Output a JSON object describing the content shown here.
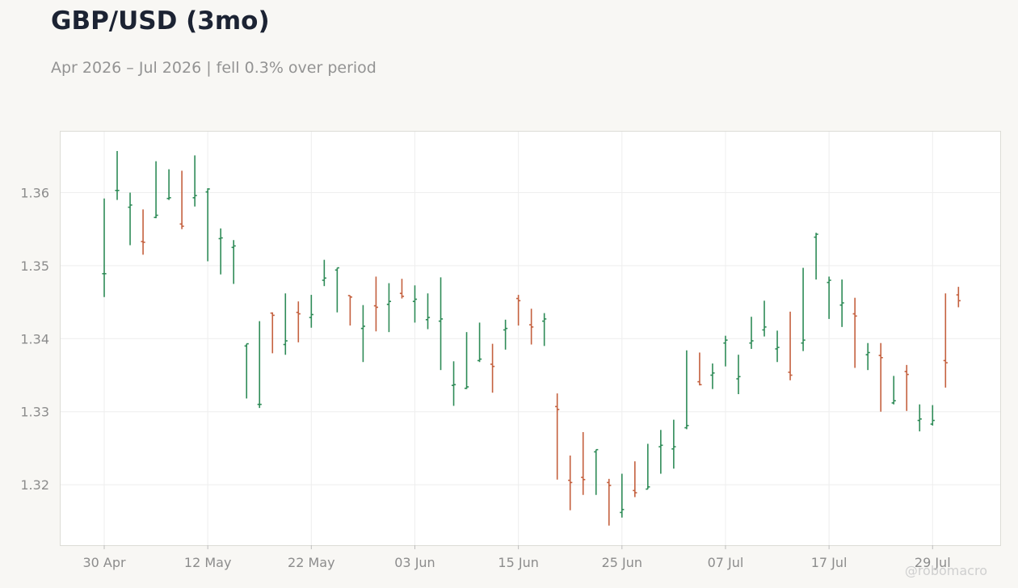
{
  "header": {
    "title": "GBP/USD (3mo)",
    "subtitle": "Apr 2026 – Jul 2026 | fell 0.3% over period"
  },
  "watermark": "@robomacro",
  "colors": {
    "up": "#2e8b57",
    "down": "#c4603e",
    "grid": "#eeeeee",
    "frame": "#dcdcd6",
    "background": "#f8f7f4",
    "plot_background": "#ffffff"
  },
  "chart_data": {
    "type": "ohlc",
    "title": "GBP/USD (3mo)",
    "subtitle": "Apr 2026 – Jul 2026 | fell 0.3% over period",
    "xlabel": "",
    "ylabel": "",
    "ylim": [
      1.3115,
      1.3685
    ],
    "grid": true,
    "x_ticks": [
      "30 Apr",
      "12 May",
      "22 May",
      "03 Jun",
      "15 Jun",
      "25 Jun",
      "07 Jul",
      "17 Jul",
      "29 Jul"
    ],
    "y_ticks": [
      "1.32",
      "1.33",
      "1.34",
      "1.35",
      "1.36"
    ],
    "y_tick_values": [
      1.32,
      1.33,
      1.34,
      1.35,
      1.36
    ],
    "bars": [
      {
        "date": "30 Apr",
        "open": 1.3489,
        "high": 1.3592,
        "low": 1.3457,
        "close": 1.3489
      },
      {
        "date": "01 May",
        "open": 1.3603,
        "high": 1.3657,
        "low": 1.359,
        "close": 1.3603
      },
      {
        "date": "04 May",
        "open": 1.358,
        "high": 1.36,
        "low": 1.3528,
        "close": 1.3583
      },
      {
        "date": "05 May",
        "open": 1.3533,
        "high": 1.3577,
        "low": 1.3515,
        "close": 1.3532
      },
      {
        "date": "06 May",
        "open": 1.3566,
        "high": 1.3643,
        "low": 1.3565,
        "close": 1.3569
      },
      {
        "date": "07 May",
        "open": 1.3592,
        "high": 1.3632,
        "low": 1.359,
        "close": 1.3593
      },
      {
        "date": "08 May",
        "open": 1.3557,
        "high": 1.363,
        "low": 1.355,
        "close": 1.3554
      },
      {
        "date": "11 May",
        "open": 1.3593,
        "high": 1.3651,
        "low": 1.3581,
        "close": 1.3596
      },
      {
        "date": "12 May",
        "open": 1.3601,
        "high": 1.3606,
        "low": 1.3506,
        "close": 1.3605
      },
      {
        "date": "13 May",
        "open": 1.3537,
        "high": 1.3551,
        "low": 1.3488,
        "close": 1.3538
      },
      {
        "date": "14 May",
        "open": 1.3525,
        "high": 1.3535,
        "low": 1.3475,
        "close": 1.3527
      },
      {
        "date": "15 May",
        "open": 1.339,
        "high": 1.3393,
        "low": 1.3318,
        "close": 1.3393
      },
      {
        "date": "18 May",
        "open": 1.331,
        "high": 1.3424,
        "low": 1.3305,
        "close": 1.331
      },
      {
        "date": "19 May",
        "open": 1.3435,
        "high": 1.3436,
        "low": 1.338,
        "close": 1.3432
      },
      {
        "date": "20 May",
        "open": 1.3392,
        "high": 1.3462,
        "low": 1.3378,
        "close": 1.3397
      },
      {
        "date": "21 May",
        "open": 1.3436,
        "high": 1.3451,
        "low": 1.3395,
        "close": 1.3434
      },
      {
        "date": "22 May",
        "open": 1.3429,
        "high": 1.346,
        "low": 1.3415,
        "close": 1.3433
      },
      {
        "date": "25 May",
        "open": 1.348,
        "high": 1.3508,
        "low": 1.3472,
        "close": 1.3483
      },
      {
        "date": "26 May",
        "open": 1.3494,
        "high": 1.3497,
        "low": 1.3436,
        "close": 1.3497
      },
      {
        "date": "27 May",
        "open": 1.3459,
        "high": 1.3459,
        "low": 1.3418,
        "close": 1.3457
      },
      {
        "date": "28 May",
        "open": 1.3414,
        "high": 1.3446,
        "low": 1.3368,
        "close": 1.3417
      },
      {
        "date": "29 May",
        "open": 1.3445,
        "high": 1.3485,
        "low": 1.341,
        "close": 1.3443
      },
      {
        "date": "01 Jun",
        "open": 1.3447,
        "high": 1.3476,
        "low": 1.3409,
        "close": 1.3451
      },
      {
        "date": "02 Jun",
        "open": 1.3462,
        "high": 1.3482,
        "low": 1.3455,
        "close": 1.3458
      },
      {
        "date": "03 Jun",
        "open": 1.3451,
        "high": 1.3473,
        "low": 1.3422,
        "close": 1.3454
      },
      {
        "date": "04 Jun",
        "open": 1.3426,
        "high": 1.3462,
        "low": 1.3413,
        "close": 1.3429
      },
      {
        "date": "05 Jun",
        "open": 1.3424,
        "high": 1.3484,
        "low": 1.3357,
        "close": 1.3427
      },
      {
        "date": "08 Jun",
        "open": 1.3336,
        "high": 1.3369,
        "low": 1.3308,
        "close": 1.3337
      },
      {
        "date": "09 Jun",
        "open": 1.3332,
        "high": 1.3409,
        "low": 1.3331,
        "close": 1.3334
      },
      {
        "date": "10 Jun",
        "open": 1.337,
        "high": 1.3422,
        "low": 1.3368,
        "close": 1.3372
      },
      {
        "date": "11 Jun",
        "open": 1.3365,
        "high": 1.3393,
        "low": 1.3326,
        "close": 1.3362
      },
      {
        "date": "12 Jun",
        "open": 1.3412,
        "high": 1.3426,
        "low": 1.3385,
        "close": 1.3414
      },
      {
        "date": "15 Jun",
        "open": 1.3455,
        "high": 1.346,
        "low": 1.3418,
        "close": 1.3452
      },
      {
        "date": "16 Jun",
        "open": 1.3419,
        "high": 1.3441,
        "low": 1.3392,
        "close": 1.3416
      },
      {
        "date": "17 Jun",
        "open": 1.3424,
        "high": 1.3435,
        "low": 1.339,
        "close": 1.3427
      },
      {
        "date": "18 Jun",
        "open": 1.3307,
        "high": 1.3325,
        "low": 1.3207,
        "close": 1.3303
      },
      {
        "date": "19 Jun",
        "open": 1.3206,
        "high": 1.324,
        "low": 1.3165,
        "close": 1.3203
      },
      {
        "date": "22 Jun",
        "open": 1.321,
        "high": 1.3272,
        "low": 1.3186,
        "close": 1.3207
      },
      {
        "date": "23 Jun",
        "open": 1.3245,
        "high": 1.3248,
        "low": 1.3186,
        "close": 1.3248
      },
      {
        "date": "24 Jun",
        "open": 1.3203,
        "high": 1.3208,
        "low": 1.3144,
        "close": 1.3199
      },
      {
        "date": "25 Jun",
        "open": 1.3162,
        "high": 1.3215,
        "low": 1.3155,
        "close": 1.3166
      },
      {
        "date": "26 Jun",
        "open": 1.3192,
        "high": 1.3232,
        "low": 1.3183,
        "close": 1.3189
      },
      {
        "date": "29 Jun",
        "open": 1.3194,
        "high": 1.3256,
        "low": 1.3194,
        "close": 1.3197
      },
      {
        "date": "30 Jun",
        "open": 1.3252,
        "high": 1.3275,
        "low": 1.3215,
        "close": 1.3254
      },
      {
        "date": "01 Jul",
        "open": 1.3249,
        "high": 1.3289,
        "low": 1.3222,
        "close": 1.3252
      },
      {
        "date": "02 Jul",
        "open": 1.3278,
        "high": 1.3384,
        "low": 1.3276,
        "close": 1.3281
      },
      {
        "date": "03 Jul",
        "open": 1.3341,
        "high": 1.3381,
        "low": 1.3336,
        "close": 1.3337
      },
      {
        "date": "06 Jul",
        "open": 1.335,
        "high": 1.3366,
        "low": 1.3331,
        "close": 1.3353
      },
      {
        "date": "07 Jul",
        "open": 1.3394,
        "high": 1.3404,
        "low": 1.3362,
        "close": 1.3398
      },
      {
        "date": "08 Jul",
        "open": 1.3345,
        "high": 1.3378,
        "low": 1.3324,
        "close": 1.3348
      },
      {
        "date": "09 Jul",
        "open": 1.3394,
        "high": 1.343,
        "low": 1.3386,
        "close": 1.3397
      },
      {
        "date": "10 Jul",
        "open": 1.3412,
        "high": 1.3452,
        "low": 1.3403,
        "close": 1.3416
      },
      {
        "date": "13 Jul",
        "open": 1.3386,
        "high": 1.3411,
        "low": 1.3368,
        "close": 1.3388
      },
      {
        "date": "14 Jul",
        "open": 1.3354,
        "high": 1.3437,
        "low": 1.3343,
        "close": 1.335
      },
      {
        "date": "15 Jul",
        "open": 1.3394,
        "high": 1.3497,
        "low": 1.3383,
        "close": 1.3398
      },
      {
        "date": "16 Jul",
        "open": 1.3539,
        "high": 1.3545,
        "low": 1.3481,
        "close": 1.3543
      },
      {
        "date": "17 Jul",
        "open": 1.3477,
        "high": 1.3485,
        "low": 1.3427,
        "close": 1.348
      },
      {
        "date": "20 Jul",
        "open": 1.3446,
        "high": 1.3481,
        "low": 1.3416,
        "close": 1.3449
      },
      {
        "date": "21 Jul",
        "open": 1.3434,
        "high": 1.3456,
        "low": 1.336,
        "close": 1.3431
      },
      {
        "date": "22 Jul",
        "open": 1.3378,
        "high": 1.3394,
        "low": 1.3357,
        "close": 1.3381
      },
      {
        "date": "23 Jul",
        "open": 1.3377,
        "high": 1.3394,
        "low": 1.33,
        "close": 1.3374
      },
      {
        "date": "24 Jul",
        "open": 1.3312,
        "high": 1.3349,
        "low": 1.331,
        "close": 1.3315
      },
      {
        "date": "27 Jul",
        "open": 1.3355,
        "high": 1.3364,
        "low": 1.3301,
        "close": 1.3351
      },
      {
        "date": "28 Jul",
        "open": 1.3288,
        "high": 1.331,
        "low": 1.3273,
        "close": 1.329
      },
      {
        "date": "29 Jul",
        "open": 1.3283,
        "high": 1.3309,
        "low": 1.3281,
        "close": 1.3288
      },
      {
        "date": "30 Jul",
        "open": 1.337,
        "high": 1.3462,
        "low": 1.3333,
        "close": 1.3367
      },
      {
        "date": "31 Jul",
        "open": 1.346,
        "high": 1.3471,
        "low": 1.3443,
        "close": 1.3452
      }
    ]
  }
}
